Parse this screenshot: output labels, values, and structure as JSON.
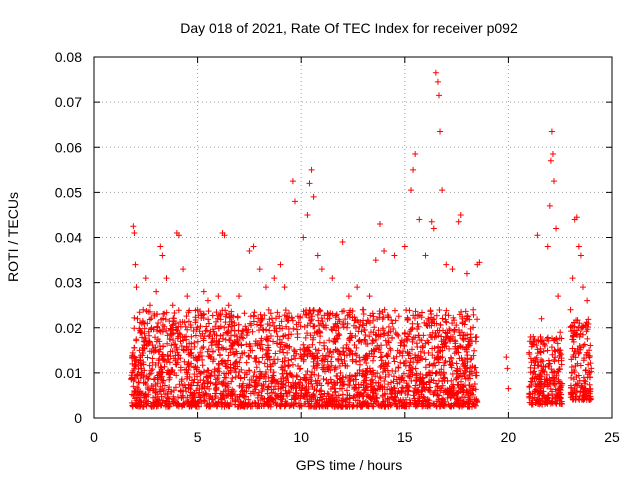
{
  "chart_data": {
    "type": "scatter",
    "title": "Day 018 of 2021, Rate Of TEC Index for receiver p092",
    "xlabel": "GPS time / hours",
    "ylabel": "ROTI / TECUs",
    "xlim": [
      0,
      25
    ],
    "ylim": [
      0,
      0.08
    ],
    "x_ticks": [
      "0",
      "5",
      "10",
      "15",
      "20",
      "25"
    ],
    "y_ticks": [
      "0",
      "0.01",
      "0.02",
      "0.03",
      "0.04",
      "0.05",
      "0.06",
      "0.07",
      "0.08"
    ],
    "grid": true,
    "marker": "+",
    "color": "#ff0000",
    "series": [
      {
        "name": "",
        "points": [
          [
            1.8,
            0.0085
          ],
          [
            1.85,
            0.012
          ],
          [
            1.9,
            0.0425
          ],
          [
            1.95,
            0.041
          ],
          [
            2.0,
            0.034
          ],
          [
            2.05,
            0.029
          ],
          [
            2.1,
            0.022
          ],
          [
            2.2,
            0.015
          ],
          [
            2.3,
            0.011
          ],
          [
            2.5,
            0.031
          ],
          [
            2.7,
            0.025
          ],
          [
            3.0,
            0.028
          ],
          [
            3.2,
            0.038
          ],
          [
            3.3,
            0.036
          ],
          [
            3.5,
            0.031
          ],
          [
            3.8,
            0.025
          ],
          [
            4.0,
            0.041
          ],
          [
            4.1,
            0.0405
          ],
          [
            4.3,
            0.033
          ],
          [
            4.5,
            0.027
          ],
          [
            5.0,
            0.024
          ],
          [
            5.3,
            0.028
          ],
          [
            5.5,
            0.026
          ],
          [
            6.0,
            0.027
          ],
          [
            6.2,
            0.041
          ],
          [
            6.3,
            0.0405
          ],
          [
            6.5,
            0.025
          ],
          [
            7.0,
            0.027
          ],
          [
            7.5,
            0.037
          ],
          [
            7.7,
            0.038
          ],
          [
            8.0,
            0.033
          ],
          [
            8.3,
            0.029
          ],
          [
            8.7,
            0.031
          ],
          [
            9.0,
            0.034
          ],
          [
            9.2,
            0.029
          ],
          [
            9.6,
            0.0525
          ],
          [
            9.7,
            0.048
          ],
          [
            10.1,
            0.04
          ],
          [
            10.3,
            0.045
          ],
          [
            10.4,
            0.052
          ],
          [
            10.5,
            0.055
          ],
          [
            10.6,
            0.049
          ],
          [
            10.8,
            0.036
          ],
          [
            11.0,
            0.033
          ],
          [
            11.5,
            0.031
          ],
          [
            12.0,
            0.039
          ],
          [
            12.3,
            0.027
          ],
          [
            12.7,
            0.029
          ],
          [
            13.0,
            0.024
          ],
          [
            13.3,
            0.027
          ],
          [
            13.6,
            0.035
          ],
          [
            13.8,
            0.043
          ],
          [
            14.0,
            0.037
          ],
          [
            14.5,
            0.036
          ],
          [
            15.0,
            0.038
          ],
          [
            15.3,
            0.0505
          ],
          [
            15.4,
            0.055
          ],
          [
            15.5,
            0.0585
          ],
          [
            15.7,
            0.044
          ],
          [
            16.0,
            0.036
          ],
          [
            16.3,
            0.0435
          ],
          [
            16.4,
            0.042
          ],
          [
            16.5,
            0.0765
          ],
          [
            16.6,
            0.0745
          ],
          [
            16.7,
            0.0635
          ],
          [
            16.65,
            0.0715
          ],
          [
            16.8,
            0.0505
          ],
          [
            17.0,
            0.034
          ],
          [
            17.3,
            0.033
          ],
          [
            17.6,
            0.0435
          ],
          [
            17.7,
            0.045
          ],
          [
            18.0,
            0.032
          ],
          [
            18.3,
            0.024
          ],
          [
            18.5,
            0.034
          ],
          [
            18.6,
            0.0345
          ],
          [
            19.9,
            0.0135
          ],
          [
            19.95,
            0.011
          ],
          [
            20.0,
            0.0065
          ],
          [
            21.0,
            0.0145
          ],
          [
            21.2,
            0.018
          ],
          [
            21.4,
            0.0405
          ],
          [
            21.6,
            0.022
          ],
          [
            21.9,
            0.038
          ],
          [
            22.0,
            0.047
          ],
          [
            22.05,
            0.057
          ],
          [
            22.1,
            0.0635
          ],
          [
            22.15,
            0.0585
          ],
          [
            22.2,
            0.0525
          ],
          [
            22.3,
            0.042
          ],
          [
            22.4,
            0.027
          ],
          [
            22.5,
            0.019
          ],
          [
            23.0,
            0.024
          ],
          [
            23.1,
            0.031
          ],
          [
            23.2,
            0.044
          ],
          [
            23.3,
            0.0445
          ],
          [
            23.4,
            0.038
          ],
          [
            23.5,
            0.036
          ],
          [
            23.6,
            0.029
          ],
          [
            23.8,
            0.026
          ],
          [
            24.0,
            0.011
          ]
        ]
      }
    ],
    "dense_bands": [
      {
        "x_start": 1.8,
        "x_end": 18.5,
        "y_low": 0.0025,
        "y_high": 0.024
      },
      {
        "x_start": 21.0,
        "x_end": 22.6,
        "y_low": 0.003,
        "y_high": 0.018
      },
      {
        "x_start": 23.0,
        "x_end": 24.0,
        "y_low": 0.004,
        "y_high": 0.022
      }
    ]
  }
}
